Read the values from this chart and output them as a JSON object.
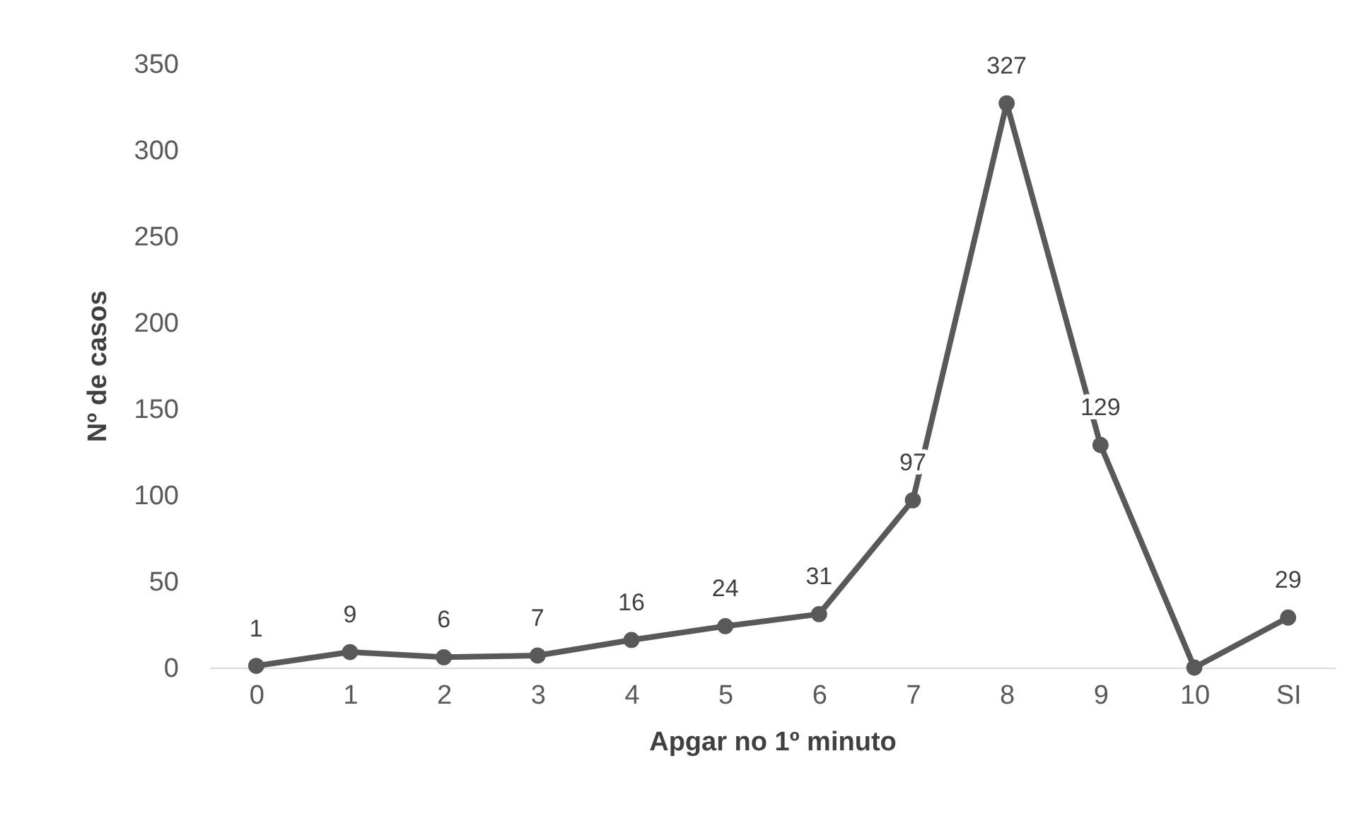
{
  "chart_data": {
    "type": "line",
    "xlabel": "Apgar no 1º minuto",
    "ylabel": "Nº de casos",
    "categories": [
      "0",
      "1",
      "2",
      "3",
      "4",
      "5",
      "6",
      "7",
      "8",
      "9",
      "10",
      "SI"
    ],
    "values": [
      1,
      9,
      6,
      7,
      16,
      24,
      31,
      97,
      327,
      129,
      0,
      29
    ],
    "value_labels": [
      "1",
      "9",
      "6",
      "7",
      "16",
      "24",
      "31",
      "97",
      "327",
      "129",
      null,
      "29"
    ],
    "color": "#595959",
    "marker": "circle",
    "ylim": [
      0,
      350
    ],
    "yticks": [
      0,
      50,
      100,
      150,
      200,
      250,
      300,
      350
    ],
    "grid": false
  }
}
